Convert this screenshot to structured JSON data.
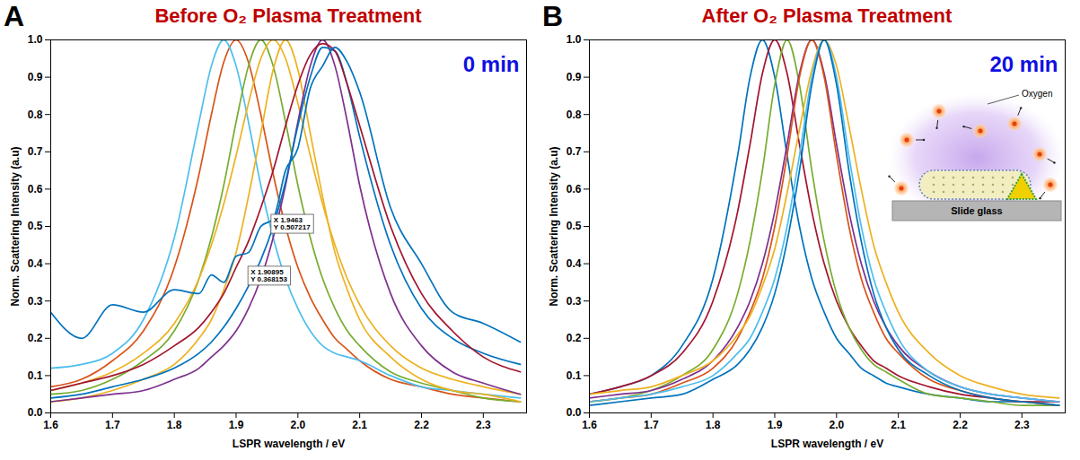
{
  "chart_data": [
    {
      "type": "line",
      "panel_label": "A",
      "title": "Before O₂ Plasma Treatment",
      "time_label": "0 min",
      "xlabel": "LSPR wavelength / eV",
      "ylabel": "Norm. Scattering Intensity (a.u)",
      "x": [
        1.6,
        1.65,
        1.7,
        1.75,
        1.8,
        1.84,
        1.86,
        1.88,
        1.9,
        1.92,
        1.94,
        1.96,
        1.98,
        2,
        2.02,
        2.04,
        2.06,
        2.08,
        2.1,
        2.15,
        2.2,
        2.25,
        2.3,
        2.36
      ],
      "xlim": [
        1.6,
        2.37
      ],
      "xticks": [
        1.6,
        1.7,
        1.8,
        1.9,
        2,
        2.1,
        2.2,
        2.3
      ],
      "ylim": [
        0,
        1
      ],
      "yticks": [
        0,
        0.1,
        0.2,
        0.3,
        0.4,
        0.5,
        0.6,
        0.7,
        0.8,
        0.9,
        1
      ],
      "series": [
        {
          "color": "#d95319",
          "values": [
            0.07,
            0.09,
            0.14,
            0.22,
            0.39,
            0.64,
            0.8,
            0.94,
            1,
            0.94,
            0.8,
            0.64,
            0.5,
            0.39,
            0.31,
            0.25,
            0.2,
            0.17,
            0.14,
            0.09,
            0.07,
            0.05,
            0.04,
            0.03
          ]
        },
        {
          "color": "#4dbeee",
          "values": [
            0.12,
            0.13,
            0.16,
            0.25,
            0.47,
            0.78,
            0.93,
            1,
            0.93,
            0.78,
            0.61,
            0.47,
            0.36,
            0.28,
            0.22,
            0.18,
            0.16,
            0.15,
            0.14,
            0.1,
            0.07,
            0.06,
            0.05,
            0.04
          ]
        },
        {
          "color": "#77ac30",
          "values": [
            0.05,
            0.06,
            0.09,
            0.14,
            0.22,
            0.36,
            0.47,
            0.61,
            0.78,
            0.93,
            1,
            0.93,
            0.78,
            0.61,
            0.47,
            0.36,
            0.28,
            0.22,
            0.18,
            0.11,
            0.08,
            0.06,
            0.04,
            0.03
          ]
        },
        {
          "color": "#edb120",
          "values": [
            0.06,
            0.08,
            0.11,
            0.16,
            0.24,
            0.36,
            0.45,
            0.56,
            0.69,
            0.83,
            0.95,
            1,
            0.95,
            0.83,
            0.69,
            0.56,
            0.45,
            0.36,
            0.29,
            0.18,
            0.12,
            0.09,
            0.07,
            0.05
          ]
        },
        {
          "color": "#edb120",
          "values": [
            0.03,
            0.04,
            0.06,
            0.09,
            0.13,
            0.2,
            0.25,
            0.33,
            0.43,
            0.58,
            0.75,
            0.92,
            1,
            0.92,
            0.75,
            0.58,
            0.43,
            0.33,
            0.25,
            0.15,
            0.09,
            0.06,
            0.05,
            0.03
          ]
        },
        {
          "color": "#7e2f8e",
          "values": [
            0.03,
            0.04,
            0.05,
            0.06,
            0.09,
            0.12,
            0.15,
            0.18,
            0.22,
            0.28,
            0.36,
            0.47,
            0.61,
            0.78,
            0.93,
            1,
            0.93,
            0.78,
            0.61,
            0.32,
            0.18,
            0.11,
            0.08,
            0.05
          ]
        },
        {
          "color": "#0072bd",
          "values": [
            0.04,
            0.05,
            0.07,
            0.09,
            0.12,
            0.16,
            0.19,
            0.23,
            0.28,
            0.34,
            0.41,
            0.5,
            0.62,
            0.77,
            0.9,
            0.98,
            0.97,
            0.88,
            0.74,
            0.45,
            0.28,
            0.2,
            0.16,
            0.13
          ]
        },
        {
          "color": "#a2142f",
          "values": [
            0.06,
            0.08,
            0.1,
            0.13,
            0.18,
            0.23,
            0.27,
            0.32,
            0.39,
            0.46,
            0.55,
            0.65,
            0.77,
            0.88,
            0.96,
            0.99,
            0.97,
            0.88,
            0.77,
            0.5,
            0.32,
            0.22,
            0.15,
            0.11
          ]
        },
        {
          "color": "#0072bd",
          "values": [
            0.27,
            0.2,
            0.29,
            0.27,
            0.33,
            0.32,
            0.37,
            0.35,
            0.42,
            0.43,
            0.5,
            0.52,
            0.65,
            0.71,
            0.87,
            0.93,
            0.98,
            0.94,
            0.86,
            0.55,
            0.4,
            0.27,
            0.24,
            0.19
          ]
        }
      ],
      "data_tips": [
        {
          "x": 1.9463,
          "y": 0.507217,
          "lines": [
            "X 1.9463",
            "Y 0.507217"
          ]
        },
        {
          "x": 1.90895,
          "y": 0.368153,
          "lines": [
            "X 1.90895",
            "Y 0.368153"
          ]
        }
      ]
    },
    {
      "type": "line",
      "panel_label": "B",
      "title": "After O₂ Plasma Treatment",
      "time_label": "20 min",
      "xlabel": "LSPR wavelength / eV",
      "ylabel": "Norm. Scattering Intensity (a.u)",
      "x": [
        1.6,
        1.65,
        1.7,
        1.75,
        1.8,
        1.84,
        1.86,
        1.88,
        1.9,
        1.92,
        1.94,
        1.96,
        1.98,
        2,
        2.02,
        2.04,
        2.06,
        2.08,
        2.1,
        2.15,
        2.2,
        2.25,
        2.3,
        2.36
      ],
      "xlim": [
        1.6,
        2.37
      ],
      "xticks": [
        1.6,
        1.7,
        1.8,
        1.9,
        2,
        2.1,
        2.2,
        2.3
      ],
      "ylim": [
        0,
        1
      ],
      "yticks": [
        0,
        0.1,
        0.2,
        0.3,
        0.4,
        0.5,
        0.6,
        0.7,
        0.8,
        0.9,
        1
      ],
      "series": [
        {
          "color": "#0072bd",
          "values": [
            0.05,
            0.07,
            0.1,
            0.18,
            0.36,
            0.69,
            0.9,
            1,
            0.9,
            0.69,
            0.5,
            0.36,
            0.27,
            0.2,
            0.16,
            0.12,
            0.1,
            0.08,
            0.07,
            0.05,
            0.04,
            0.03,
            0.03,
            0.02
          ]
        },
        {
          "color": "#a2142f",
          "values": [
            0.05,
            0.07,
            0.1,
            0.16,
            0.3,
            0.54,
            0.72,
            0.91,
            1,
            0.91,
            0.72,
            0.54,
            0.4,
            0.3,
            0.23,
            0.18,
            0.14,
            0.12,
            0.1,
            0.07,
            0.05,
            0.04,
            0.03,
            0.03
          ]
        },
        {
          "color": "#77ac30",
          "values": [
            0.03,
            0.04,
            0.06,
            0.1,
            0.17,
            0.32,
            0.46,
            0.65,
            0.88,
            1,
            0.88,
            0.65,
            0.46,
            0.32,
            0.23,
            0.17,
            0.13,
            0.11,
            0.09,
            0.05,
            0.04,
            0.03,
            0.02,
            0.02
          ]
        },
        {
          "color": "#7e2f8e",
          "values": [
            0.04,
            0.05,
            0.06,
            0.09,
            0.14,
            0.23,
            0.3,
            0.4,
            0.54,
            0.72,
            0.91,
            1,
            0.91,
            0.72,
            0.54,
            0.4,
            0.3,
            0.23,
            0.18,
            0.11,
            0.07,
            0.05,
            0.04,
            0.03
          ]
        },
        {
          "color": "#d95319",
          "values": [
            0.03,
            0.04,
            0.05,
            0.08,
            0.12,
            0.2,
            0.27,
            0.36,
            0.5,
            0.69,
            0.9,
            1,
            0.9,
            0.69,
            0.5,
            0.36,
            0.27,
            0.2,
            0.16,
            0.09,
            0.06,
            0.04,
            0.03,
            0.02
          ]
        },
        {
          "color": "#edb120",
          "values": [
            0.05,
            0.06,
            0.07,
            0.1,
            0.14,
            0.21,
            0.26,
            0.34,
            0.44,
            0.59,
            0.76,
            0.92,
            1,
            0.93,
            0.77,
            0.6,
            0.45,
            0.35,
            0.27,
            0.16,
            0.1,
            0.07,
            0.05,
            0.04
          ]
        },
        {
          "color": "#4dbeee",
          "values": [
            0.03,
            0.04,
            0.05,
            0.07,
            0.1,
            0.16,
            0.2,
            0.27,
            0.36,
            0.5,
            0.69,
            0.9,
            1,
            0.9,
            0.69,
            0.5,
            0.36,
            0.27,
            0.2,
            0.11,
            0.07,
            0.05,
            0.04,
            0.03
          ]
        },
        {
          "color": "#0072bd",
          "values": [
            0.02,
            0.03,
            0.04,
            0.05,
            0.09,
            0.13,
            0.17,
            0.23,
            0.32,
            0.46,
            0.65,
            0.88,
            1,
            0.88,
            0.65,
            0.46,
            0.32,
            0.23,
            0.17,
            0.1,
            0.06,
            0.04,
            0.03,
            0.02
          ]
        }
      ],
      "inset_labels": [
        "Oxygen",
        "Slide glass"
      ]
    }
  ]
}
